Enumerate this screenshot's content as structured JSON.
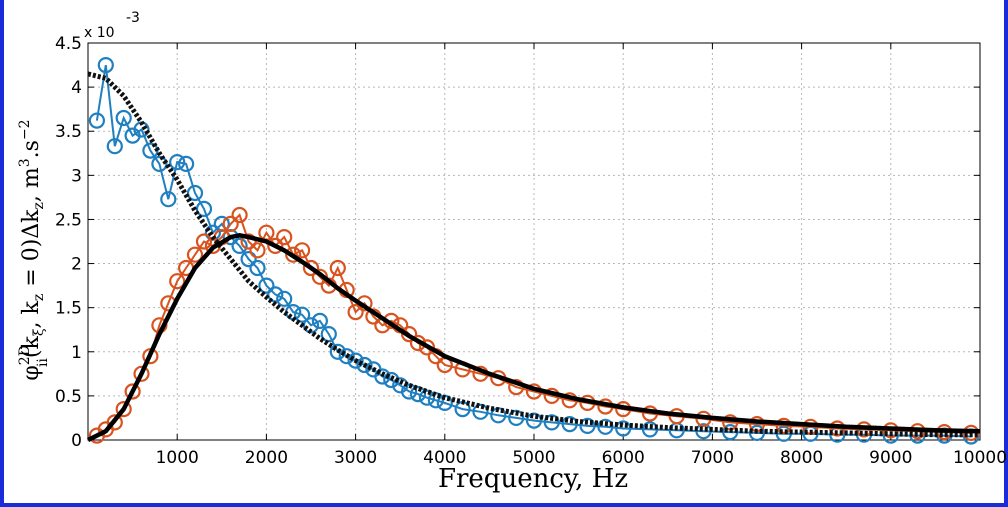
{
  "chart_data": {
    "type": "line",
    "xlabel": "Frequency, Hz",
    "ylabel_parts": {
      "phi": "φ",
      "sup": "2D",
      "sub": "ii",
      "args": "(k",
      "xi": "ξ",
      "comma": ", k",
      "z": "z",
      "eq": " = 0)Δk",
      "z2": "z",
      "unit": ", m",
      "cube": "3",
      "dot": ".s",
      "neg2": "−2"
    },
    "exponent_label": "x 10",
    "exponent_power": "-3",
    "xlim": [
      0,
      10000
    ],
    "ylim": [
      0,
      4.5
    ],
    "xticks": [
      "1000",
      "2000",
      "3000",
      "4000",
      "5000",
      "6000",
      "7000",
      "8000",
      "9000",
      "10000"
    ],
    "yticks": [
      "0",
      "0.5",
      "1",
      "1.5",
      "2",
      "2.5",
      "3",
      "3.5",
      "4",
      "4.5"
    ],
    "grid": true,
    "scale": 0.001,
    "series": [
      {
        "kind": "markers",
        "color": "#1f7fc0",
        "x": [
          100,
          200,
          300,
          400,
          500,
          600,
          700,
          800,
          900,
          1000,
          1100,
          1200,
          1300,
          1400,
          1500,
          1600,
          1700,
          1800,
          1900,
          2000,
          2100,
          2200,
          2300,
          2400,
          2500,
          2600,
          2700,
          2800,
          2900,
          3000,
          3100,
          3200,
          3300,
          3400,
          3500,
          3600,
          3700,
          3800,
          3900,
          4000,
          4200,
          4400,
          4600,
          4800,
          5000,
          5200,
          5400,
          5600,
          5800,
          6000,
          6300,
          6600,
          6900,
          7200,
          7500,
          7800,
          8100,
          8400,
          8700,
          9000,
          9300,
          9600,
          9900
        ],
        "y": [
          3.62,
          4.25,
          3.33,
          3.65,
          3.45,
          3.52,
          3.28,
          3.13,
          2.73,
          3.15,
          3.13,
          2.8,
          2.62,
          2.35,
          2.45,
          2.3,
          2.2,
          2.05,
          1.95,
          1.75,
          1.65,
          1.6,
          1.45,
          1.42,
          1.3,
          1.35,
          1.2,
          1.0,
          0.95,
          0.9,
          0.85,
          0.8,
          0.72,
          0.68,
          0.62,
          0.55,
          0.52,
          0.48,
          0.45,
          0.42,
          0.35,
          0.32,
          0.28,
          0.25,
          0.22,
          0.2,
          0.18,
          0.16,
          0.15,
          0.13,
          0.12,
          0.11,
          0.1,
          0.09,
          0.08,
          0.07,
          0.07,
          0.06,
          0.06,
          0.05,
          0.05,
          0.05,
          0.04
        ]
      },
      {
        "kind": "markers",
        "color": "#d9531e",
        "x": [
          100,
          200,
          300,
          400,
          500,
          600,
          700,
          800,
          900,
          1000,
          1100,
          1200,
          1300,
          1400,
          1500,
          1600,
          1700,
          1800,
          1900,
          2000,
          2100,
          2200,
          2300,
          2400,
          2500,
          2600,
          2700,
          2800,
          2900,
          3000,
          3100,
          3200,
          3300,
          3400,
          3500,
          3600,
          3700,
          3800,
          3900,
          4000,
          4200,
          4400,
          4600,
          4800,
          5000,
          5200,
          5400,
          5600,
          5800,
          6000,
          6300,
          6600,
          6900,
          7200,
          7500,
          7800,
          8100,
          8400,
          8700,
          9000,
          9300,
          9600,
          9900
        ],
        "y": [
          0.05,
          0.12,
          0.2,
          0.35,
          0.55,
          0.75,
          0.95,
          1.3,
          1.55,
          1.8,
          1.95,
          2.1,
          2.25,
          2.2,
          2.3,
          2.45,
          2.55,
          2.25,
          2.15,
          2.35,
          2.2,
          2.3,
          2.1,
          2.15,
          1.95,
          1.85,
          1.75,
          1.95,
          1.7,
          1.45,
          1.55,
          1.4,
          1.3,
          1.35,
          1.3,
          1.2,
          1.1,
          1.05,
          0.95,
          0.85,
          0.8,
          0.75,
          0.7,
          0.6,
          0.55,
          0.5,
          0.45,
          0.42,
          0.38,
          0.35,
          0.3,
          0.27,
          0.24,
          0.2,
          0.18,
          0.16,
          0.15,
          0.13,
          0.12,
          0.11,
          0.1,
          0.09,
          0.08
        ]
      },
      {
        "kind": "dotted-fit",
        "color": "#111111",
        "x": [
          0,
          200,
          400,
          600,
          800,
          1000,
          1200,
          1400,
          1600,
          1800,
          2000,
          2200,
          2400,
          2600,
          2800,
          3000,
          3300,
          3600,
          4000,
          4500,
          5000,
          5500,
          6000,
          6500,
          7000,
          7500,
          8000,
          8500,
          9000,
          9500,
          10000
        ],
        "y": [
          4.15,
          4.1,
          3.9,
          3.6,
          3.25,
          2.95,
          2.6,
          2.3,
          2.05,
          1.8,
          1.62,
          1.45,
          1.3,
          1.15,
          1.02,
          0.9,
          0.75,
          0.62,
          0.48,
          0.36,
          0.27,
          0.21,
          0.17,
          0.14,
          0.12,
          0.1,
          0.09,
          0.08,
          0.07,
          0.06,
          0.06
        ]
      },
      {
        "kind": "solid-fit",
        "color": "#000000",
        "x": [
          0,
          200,
          400,
          600,
          800,
          1000,
          1200,
          1400,
          1600,
          1700,
          1800,
          2000,
          2200,
          2400,
          2600,
          2800,
          3000,
          3300,
          3600,
          4000,
          4500,
          5000,
          5500,
          6000,
          6500,
          7000,
          7500,
          8000,
          8500,
          9000,
          9500,
          10000
        ],
        "y": [
          0.0,
          0.1,
          0.35,
          0.75,
          1.2,
          1.6,
          1.95,
          2.18,
          2.3,
          2.32,
          2.3,
          2.25,
          2.15,
          2.02,
          1.88,
          1.72,
          1.58,
          1.38,
          1.18,
          0.95,
          0.75,
          0.58,
          0.46,
          0.37,
          0.3,
          0.25,
          0.21,
          0.18,
          0.15,
          0.13,
          0.11,
          0.1
        ]
      }
    ]
  }
}
